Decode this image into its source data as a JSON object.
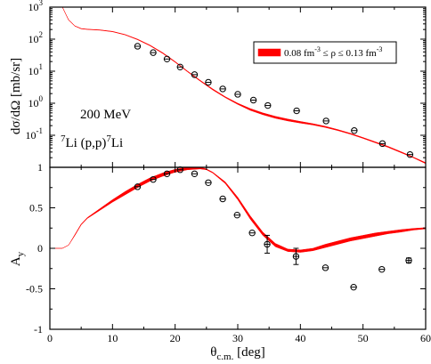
{
  "chart_data": [
    {
      "type": "scatter",
      "panel": "top",
      "ylabel": "dσ/dΩ [mb/sr]",
      "yscale": "log",
      "xlim": [
        0,
        60
      ],
      "ylim": [
        0.01,
        1000
      ],
      "y_ticks": [
        {
          "value": 0.1,
          "base": "10",
          "exp": "-1"
        },
        {
          "value": 1,
          "base": "10",
          "exp": "0"
        },
        {
          "value": 10,
          "base": "10",
          "exp": "1"
        },
        {
          "value": 100,
          "base": "10",
          "exp": "2"
        },
        {
          "value": 1000,
          "base": "10",
          "exp": "3"
        }
      ],
      "annotations": {
        "energy": "200 MeV",
        "reaction": {
          "pre_sup": "7",
          "mid": "Li (p,p)",
          "post_sup": "7",
          "tail": "Li"
        }
      },
      "legend": {
        "position": "top-right",
        "label": {
          "a": "0.08 fm",
          "a_sup": "-3",
          "b": " ≤ ρ ≤ 0.13 fm",
          "b_sup": "-3"
        },
        "color": "#ff0000"
      },
      "band": {
        "upper": [
          [
            2,
            1000
          ],
          [
            3,
            400
          ],
          [
            4,
            260
          ],
          [
            5,
            215
          ],
          [
            6,
            205
          ],
          [
            8,
            195
          ],
          [
            10,
            175
          ],
          [
            12,
            140
          ],
          [
            14,
            100
          ],
          [
            16,
            65
          ],
          [
            18,
            38
          ],
          [
            20,
            20
          ],
          [
            22,
            10
          ],
          [
            24,
            5.2
          ],
          [
            26,
            2.8
          ],
          [
            28,
            1.6
          ],
          [
            30,
            1.0
          ],
          [
            32,
            0.68
          ],
          [
            34,
            0.5
          ],
          [
            36,
            0.39
          ],
          [
            38,
            0.32
          ],
          [
            40,
            0.27
          ],
          [
            42,
            0.23
          ],
          [
            44,
            0.19
          ],
          [
            46,
            0.15
          ],
          [
            48,
            0.115
          ],
          [
            50,
            0.085
          ],
          [
            52,
            0.062
          ],
          [
            54,
            0.045
          ],
          [
            56,
            0.031
          ],
          [
            58,
            0.021
          ],
          [
            60,
            0.014
          ]
        ],
        "lower": [
          [
            2,
            1000
          ],
          [
            3,
            390
          ],
          [
            4,
            255
          ],
          [
            5,
            210
          ],
          [
            6,
            200
          ],
          [
            8,
            190
          ],
          [
            10,
            170
          ],
          [
            12,
            136
          ],
          [
            14,
            96
          ],
          [
            16,
            62
          ],
          [
            18,
            36
          ],
          [
            20,
            19
          ],
          [
            22,
            9.5
          ],
          [
            24,
            4.9
          ],
          [
            26,
            2.6
          ],
          [
            28,
            1.5
          ],
          [
            30,
            0.92
          ],
          [
            32,
            0.6
          ],
          [
            34,
            0.44
          ],
          [
            36,
            0.34
          ],
          [
            38,
            0.28
          ],
          [
            40,
            0.24
          ],
          [
            42,
            0.21
          ],
          [
            44,
            0.175
          ],
          [
            46,
            0.14
          ],
          [
            48,
            0.108
          ],
          [
            50,
            0.08
          ],
          [
            52,
            0.058
          ],
          [
            54,
            0.042
          ],
          [
            56,
            0.029
          ],
          [
            58,
            0.02
          ],
          [
            60,
            0.013
          ]
        ]
      },
      "points": [
        {
          "x": 14,
          "y": 60
        },
        {
          "x": 16.5,
          "y": 38
        },
        {
          "x": 18.7,
          "y": 24
        },
        {
          "x": 20.8,
          "y": 13.5
        },
        {
          "x": 23.1,
          "y": 7.8
        },
        {
          "x": 25.3,
          "y": 4.5
        },
        {
          "x": 27.6,
          "y": 2.8
        },
        {
          "x": 30.0,
          "y": 1.9
        },
        {
          "x": 32.5,
          "y": 1.25
        },
        {
          "x": 34.8,
          "y": 0.85
        },
        {
          "x": 39.4,
          "y": 0.58
        },
        {
          "x": 44.1,
          "y": 0.28
        },
        {
          "x": 48.6,
          "y": 0.14
        },
        {
          "x": 53.1,
          "y": 0.055
        },
        {
          "x": 57.5,
          "y": 0.025
        }
      ]
    },
    {
      "type": "scatter",
      "panel": "bottom",
      "ylabel": "A",
      "ylabel_sub": "y",
      "xlabel": "θ",
      "xlabel_sub": "c.m.",
      "xlabel_tail": " [deg]",
      "xlim": [
        0,
        60
      ],
      "ylim": [
        -1,
        1
      ],
      "x_ticks": [
        0,
        10,
        20,
        30,
        40,
        50,
        60
      ],
      "y_ticks": [
        -1,
        -0.5,
        0,
        0.5,
        1
      ],
      "band": {
        "upper": [
          [
            0,
            0
          ],
          [
            2,
            0
          ],
          [
            3,
            0.04
          ],
          [
            4,
            0.17
          ],
          [
            5,
            0.3
          ],
          [
            6,
            0.38
          ],
          [
            8,
            0.49
          ],
          [
            10,
            0.6
          ],
          [
            12,
            0.7
          ],
          [
            14,
            0.79
          ],
          [
            16,
            0.87
          ],
          [
            18,
            0.93
          ],
          [
            20,
            0.975
          ],
          [
            22,
            1.0
          ],
          [
            24,
            1.0
          ],
          [
            25,
            0.98
          ],
          [
            26,
            0.94
          ],
          [
            28,
            0.82
          ],
          [
            30,
            0.63
          ],
          [
            32,
            0.4
          ],
          [
            34,
            0.2
          ],
          [
            36,
            0.06
          ],
          [
            38,
            -0.01
          ],
          [
            40,
            -0.02
          ],
          [
            42,
            0.0
          ],
          [
            44,
            0.05
          ],
          [
            46,
            0.09
          ],
          [
            48,
            0.13
          ],
          [
            50,
            0.16
          ],
          [
            52,
            0.19
          ],
          [
            54,
            0.21
          ],
          [
            56,
            0.23
          ],
          [
            58,
            0.245
          ],
          [
            60,
            0.255
          ]
        ],
        "lower": [
          [
            0,
            0
          ],
          [
            2,
            0
          ],
          [
            3,
            0.04
          ],
          [
            4,
            0.16
          ],
          [
            5,
            0.29
          ],
          [
            6,
            0.37
          ],
          [
            8,
            0.47
          ],
          [
            10,
            0.57
          ],
          [
            12,
            0.66
          ],
          [
            14,
            0.75
          ],
          [
            16,
            0.83
          ],
          [
            18,
            0.89
          ],
          [
            20,
            0.94
          ],
          [
            22,
            0.97
          ],
          [
            24,
            0.98
          ],
          [
            25,
            0.97
          ],
          [
            26,
            0.93
          ],
          [
            28,
            0.8
          ],
          [
            30,
            0.6
          ],
          [
            32,
            0.36
          ],
          [
            34,
            0.16
          ],
          [
            36,
            0.02
          ],
          [
            38,
            -0.04
          ],
          [
            40,
            -0.05
          ],
          [
            42,
            -0.03
          ],
          [
            44,
            0.01
          ],
          [
            46,
            0.05
          ],
          [
            48,
            0.09
          ],
          [
            50,
            0.12
          ],
          [
            52,
            0.15
          ],
          [
            54,
            0.18
          ],
          [
            56,
            0.2
          ],
          [
            58,
            0.225
          ],
          [
            60,
            0.24
          ]
        ]
      },
      "points": [
        {
          "x": 14,
          "y": 0.76,
          "err": 0
        },
        {
          "x": 16.5,
          "y": 0.85,
          "err": 0
        },
        {
          "x": 18.7,
          "y": 0.92,
          "err": 0
        },
        {
          "x": 20.8,
          "y": 0.97,
          "err": 0
        },
        {
          "x": 23.1,
          "y": 0.92,
          "err": 0
        },
        {
          "x": 25.3,
          "y": 0.81,
          "err": 0
        },
        {
          "x": 27.6,
          "y": 0.61,
          "err": 0
        },
        {
          "x": 29.9,
          "y": 0.41,
          "err": 0
        },
        {
          "x": 32.3,
          "y": 0.19,
          "err": 0
        },
        {
          "x": 34.7,
          "y": 0.05,
          "err": 0.11
        },
        {
          "x": 39.3,
          "y": -0.1,
          "err": 0.1
        },
        {
          "x": 44.0,
          "y": -0.24,
          "err": 0
        },
        {
          "x": 48.5,
          "y": -0.48,
          "err": 0
        },
        {
          "x": 53.0,
          "y": -0.26,
          "err": 0
        },
        {
          "x": 57.3,
          "y": -0.15,
          "err": 0.03
        }
      ]
    }
  ]
}
